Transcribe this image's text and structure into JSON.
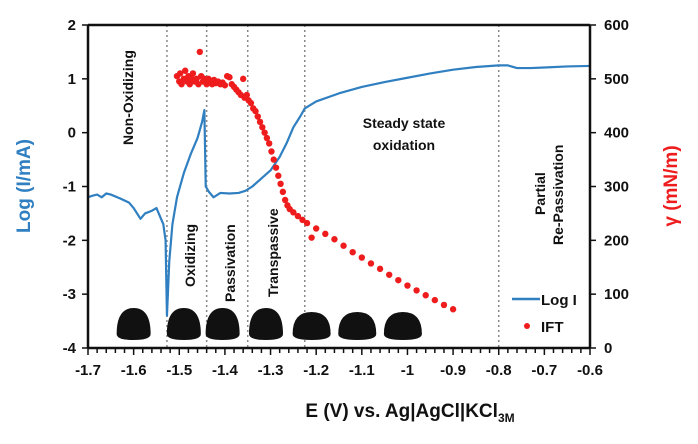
{
  "chart_data": {
    "type": "line+scatter",
    "xlabel": "E (V) vs. Ag|AgCl|KCl",
    "xlabel_sub": "3M",
    "ylabel_left": "Log (I/mA)",
    "ylabel_right": "γ (mN/m)",
    "xlim": [
      -1.7,
      -0.6
    ],
    "ylim_left": [
      -4,
      2
    ],
    "ylim_right": [
      0,
      600
    ],
    "x_ticks": [
      "-1.7",
      "-1.6",
      "-1.5",
      "-1.4",
      "-1.3",
      "-1.2",
      "-1.1",
      "-1",
      "-0.9",
      "-0.8",
      "-0.7",
      "-0.6"
    ],
    "y_left_ticks": [
      "2",
      "1",
      "0",
      "-1",
      "-2",
      "-3",
      "-4"
    ],
    "y_right_ticks": [
      "600",
      "500",
      "400",
      "300",
      "200",
      "100",
      "0"
    ],
    "grid": false,
    "legend_placement": "bottom-right",
    "colors": {
      "log_i": "#2f7fc1",
      "ift": "#ee1c1c",
      "left_axis_label": "#2f7fc1",
      "right_axis_label": "#ee1c1c"
    },
    "region_boundaries": [
      -1.527,
      -1.44,
      -1.35,
      -1.225,
      -0.8
    ],
    "region_labels": {
      "non_oxidizing": "Non-Oxidizing",
      "oxidizing": "Oxidizing",
      "passivation": "Passivation",
      "transpassive": "Transpassive",
      "steady_1": "Steady state",
      "steady_2": "oxidation",
      "partial_1": "Partial",
      "partial_2": "Re-Passivation"
    },
    "droplet_images_at": [
      -1.6,
      -1.49,
      -1.405,
      -1.31,
      -1.21,
      -1.11,
      -1.01
    ],
    "series": [
      {
        "name": "Log I",
        "axis": "left",
        "kind": "line",
        "points": [
          [
            -1.7,
            -1.2
          ],
          [
            -1.69,
            -1.17
          ],
          [
            -1.68,
            -1.15
          ],
          [
            -1.67,
            -1.2
          ],
          [
            -1.66,
            -1.13
          ],
          [
            -1.65,
            -1.15
          ],
          [
            -1.63,
            -1.22
          ],
          [
            -1.61,
            -1.3
          ],
          [
            -1.6,
            -1.4
          ],
          [
            -1.585,
            -1.6
          ],
          [
            -1.575,
            -1.5
          ],
          [
            -1.56,
            -1.45
          ],
          [
            -1.55,
            -1.4
          ],
          [
            -1.54,
            -1.6
          ],
          [
            -1.535,
            -1.7
          ],
          [
            -1.53,
            -2.0
          ],
          [
            -1.527,
            -3.4
          ],
          [
            -1.522,
            -2.4
          ],
          [
            -1.515,
            -1.7
          ],
          [
            -1.505,
            -1.2
          ],
          [
            -1.49,
            -0.75
          ],
          [
            -1.475,
            -0.4
          ],
          [
            -1.46,
            -0.1
          ],
          [
            -1.45,
            0.2
          ],
          [
            -1.445,
            0.42
          ],
          [
            -1.442,
            -1.0
          ],
          [
            -1.435,
            -1.1
          ],
          [
            -1.425,
            -1.2
          ],
          [
            -1.41,
            -1.12
          ],
          [
            -1.39,
            -1.13
          ],
          [
            -1.37,
            -1.12
          ],
          [
            -1.355,
            -1.08
          ],
          [
            -1.34,
            -1.0
          ],
          [
            -1.32,
            -0.85
          ],
          [
            -1.3,
            -0.7
          ],
          [
            -1.28,
            -0.45
          ],
          [
            -1.265,
            -0.2
          ],
          [
            -1.25,
            0.1
          ],
          [
            -1.235,
            0.3
          ],
          [
            -1.225,
            0.45
          ],
          [
            -1.2,
            0.58
          ],
          [
            -1.15,
            0.73
          ],
          [
            -1.1,
            0.85
          ],
          [
            -1.05,
            0.94
          ],
          [
            -1.0,
            1.02
          ],
          [
            -0.95,
            1.1
          ],
          [
            -0.9,
            1.17
          ],
          [
            -0.85,
            1.22
          ],
          [
            -0.8,
            1.25
          ],
          [
            -0.78,
            1.25
          ],
          [
            -0.76,
            1.2
          ],
          [
            -0.73,
            1.2
          ],
          [
            -0.7,
            1.21
          ],
          [
            -0.65,
            1.23
          ],
          [
            -0.6,
            1.24
          ]
        ]
      },
      {
        "name": "IFT",
        "axis": "right",
        "kind": "scatter",
        "points": [
          [
            -1.505,
            505
          ],
          [
            -1.5,
            495
          ],
          [
            -1.498,
            510
          ],
          [
            -1.495,
            490
          ],
          [
            -1.49,
            500
          ],
          [
            -1.487,
            515
          ],
          [
            -1.483,
            495
          ],
          [
            -1.48,
            505
          ],
          [
            -1.477,
            490
          ],
          [
            -1.473,
            500
          ],
          [
            -1.47,
            510
          ],
          [
            -1.466,
            495
          ],
          [
            -1.462,
            500
          ],
          [
            -1.458,
            490
          ],
          [
            -1.455,
            550
          ],
          [
            -1.452,
            505
          ],
          [
            -1.448,
            495
          ],
          [
            -1.445,
            500
          ],
          [
            -1.44,
            490
          ],
          [
            -1.436,
            500
          ],
          [
            -1.432,
            495
          ],
          [
            -1.428,
            490
          ],
          [
            -1.424,
            498
          ],
          [
            -1.42,
            492
          ],
          [
            -1.415,
            495
          ],
          [
            -1.41,
            490
          ],
          [
            -1.405,
            493
          ],
          [
            -1.4,
            488
          ],
          [
            -1.395,
            505
          ],
          [
            -1.39,
            503
          ],
          [
            -1.385,
            490
          ],
          [
            -1.38,
            485
          ],
          [
            -1.375,
            480
          ],
          [
            -1.37,
            475
          ],
          [
            -1.365,
            470
          ],
          [
            -1.36,
            500
          ],
          [
            -1.357,
            465
          ],
          [
            -1.352,
            470
          ],
          [
            -1.348,
            460
          ],
          [
            -1.343,
            455
          ],
          [
            -1.338,
            445
          ],
          [
            -1.333,
            440
          ],
          [
            -1.328,
            430
          ],
          [
            -1.323,
            420
          ],
          [
            -1.318,
            410
          ],
          [
            -1.313,
            400
          ],
          [
            -1.308,
            390
          ],
          [
            -1.303,
            380
          ],
          [
            -1.298,
            365
          ],
          [
            -1.293,
            350
          ],
          [
            -1.288,
            335
          ],
          [
            -1.283,
            320
          ],
          [
            -1.278,
            305
          ],
          [
            -1.273,
            290
          ],
          [
            -1.268,
            275
          ],
          [
            -1.263,
            265
          ],
          [
            -1.258,
            258
          ],
          [
            -1.25,
            252
          ],
          [
            -1.24,
            245
          ],
          [
            -1.23,
            238
          ],
          [
            -1.22,
            232
          ],
          [
            -1.21,
            205
          ],
          [
            -1.2,
            222
          ],
          [
            -1.18,
            212
          ],
          [
            -1.16,
            202
          ],
          [
            -1.14,
            190
          ],
          [
            -1.12,
            178
          ],
          [
            -1.1,
            168
          ],
          [
            -1.08,
            157
          ],
          [
            -1.06,
            147
          ],
          [
            -1.04,
            136
          ],
          [
            -1.02,
            126
          ],
          [
            -1.0,
            116
          ],
          [
            -0.98,
            107
          ],
          [
            -0.96,
            98
          ],
          [
            -0.94,
            89
          ],
          [
            -0.92,
            80
          ],
          [
            -0.9,
            72
          ]
        ]
      }
    ]
  }
}
